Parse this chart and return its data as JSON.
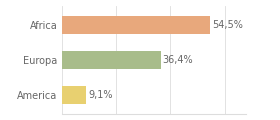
{
  "categories": [
    "Africa",
    "Europa",
    "America"
  ],
  "values": [
    54.5,
    36.4,
    9.1
  ],
  "labels": [
    "54,5%",
    "36,4%",
    "9,1%"
  ],
  "bar_colors": [
    "#e8a87c",
    "#a8bc8a",
    "#e8d070"
  ],
  "background_color": "#ffffff",
  "xlim": [
    0,
    68
  ],
  "bar_height": 0.5,
  "label_fontsize": 7,
  "tick_fontsize": 7,
  "grid_ticks": [
    0,
    20,
    40,
    60
  ],
  "grid_color": "#dddddd",
  "text_color": "#666666"
}
